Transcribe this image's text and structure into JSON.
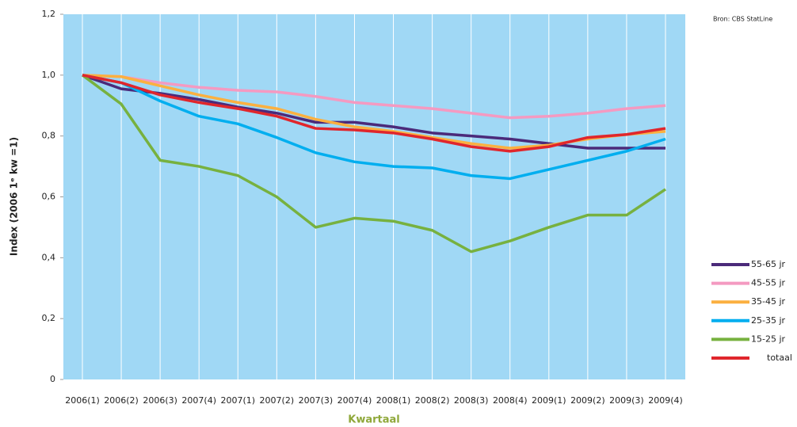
{
  "chart_data": {
    "type": "line",
    "source": "Bron: CBS StatLine",
    "x_label": "Kwartaal",
    "y_label": "Index (2006 1ᵉ kw =1)",
    "categories": [
      "2006(1)",
      "2006(2)",
      "2006(3)",
      "2007(4)",
      "2007(1)",
      "2007(2)",
      "2007(3)",
      "2007(4)",
      "2008(1)",
      "2008(2)",
      "2008(3)",
      "2008(4)",
      "2009(1)",
      "2009(2)",
      "2009(3)",
      "2009(4)"
    ],
    "series": [
      {
        "name": "55-65 jr",
        "color": "#4b2a7a",
        "values": [
          1.0,
          0.955,
          0.94,
          0.92,
          0.895,
          0.875,
          0.845,
          0.845,
          0.83,
          0.81,
          0.8,
          0.79,
          0.775,
          0.76,
          0.76,
          0.76
        ]
      },
      {
        "name": "45-55 jr",
        "color": "#f49ac1",
        "values": [
          1.0,
          0.995,
          0.975,
          0.96,
          0.95,
          0.945,
          0.93,
          0.91,
          0.9,
          0.89,
          0.875,
          0.86,
          0.865,
          0.875,
          0.89,
          0.9
        ]
      },
      {
        "name": "35-45 jr",
        "color": "#fbb040",
        "values": [
          1.0,
          0.995,
          0.965,
          0.935,
          0.91,
          0.89,
          0.855,
          0.83,
          0.815,
          0.795,
          0.775,
          0.76,
          0.77,
          0.79,
          0.805,
          0.815
        ]
      },
      {
        "name": "25-35 jr",
        "color": "#00aeef",
        "values": [
          1.0,
          0.975,
          0.915,
          0.865,
          0.84,
          0.795,
          0.745,
          0.715,
          0.7,
          0.695,
          0.67,
          0.66,
          0.69,
          0.72,
          0.75,
          0.79
        ]
      },
      {
        "name": "15-25 jr",
        "color": "#77b13f",
        "values": [
          1.0,
          0.905,
          0.72,
          0.7,
          0.67,
          0.6,
          0.5,
          0.53,
          0.52,
          0.49,
          0.42,
          0.455,
          0.5,
          0.54,
          0.54,
          0.625
        ]
      },
      {
        "name": "totaal",
        "color": "#e0262c",
        "values": [
          1.0,
          0.975,
          0.935,
          0.91,
          0.89,
          0.865,
          0.825,
          0.82,
          0.81,
          0.79,
          0.765,
          0.75,
          0.765,
          0.795,
          0.805,
          0.825
        ]
      }
    ],
    "ylim": [
      0,
      1.2
    ],
    "yticks": [
      0,
      {
        "value": 0.2,
        "label": "0,2"
      },
      {
        "value": 0.4,
        "label": "0,4"
      },
      {
        "value": 0.6,
        "label": "0,6"
      },
      {
        "value": 0.8,
        "label": "0,8"
      },
      {
        "value": 1.0,
        "label": "1,0"
      },
      {
        "value": 1.2,
        "label": "1,2"
      }
    ],
    "grid": true,
    "background": "#a0d8f5"
  }
}
